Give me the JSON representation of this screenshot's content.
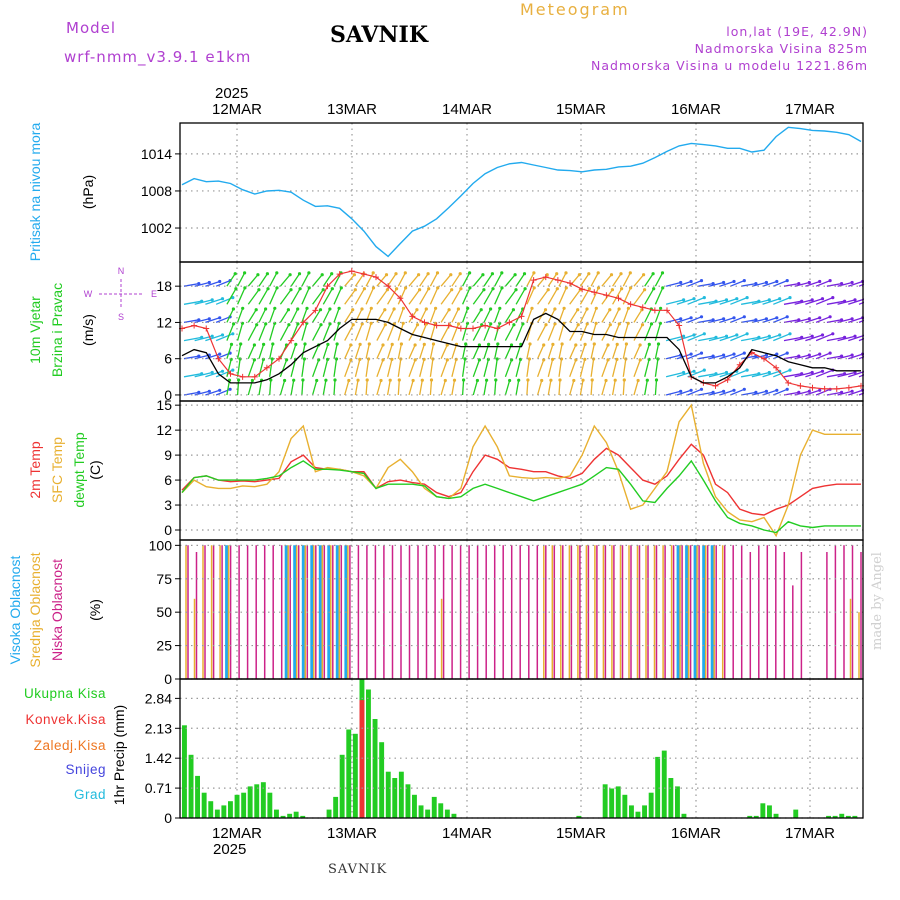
{
  "header": {
    "model_label": "Model",
    "model_name": "wrf-nmm_v3.9.1  e1km",
    "station": "SAVNIK",
    "meteogram": "Meteogram",
    "location": "lon,lat (19E, 42.9N)",
    "elevation": "Nadmorska Visina 825m",
    "model_elevation": "Nadmorska Visina u modelu 1221.86m",
    "footer_station": "SAVNIK",
    "made_by": "made by Angel"
  },
  "chart_data": [
    {
      "type": "line",
      "panel": "pressure",
      "ylabel_lines": [
        "Pritisak na nivou mora",
        "(hPa)"
      ],
      "ylabel_colors": [
        "#22aaee",
        "#000000"
      ],
      "x_year": "2025",
      "x_day_labels": [
        "12MAR",
        "13MAR",
        "14MAR",
        "15MAR",
        "16MAR",
        "17MAR"
      ],
      "yticks": [
        1002,
        1008,
        1014
      ],
      "ylim": [
        996.5,
        1019
      ],
      "color": "#22aaee",
      "series": [
        {
          "values": [
            1009,
            1010,
            1009.5,
            1009.6,
            1009.2,
            1008.2,
            1007.5,
            1008,
            1008.1,
            1007.8,
            1006.5,
            1005.5,
            1005.6,
            1005.2,
            1003.5,
            1001.5,
            999,
            997.4,
            999.5,
            1001.5,
            1002.3,
            1003.5,
            1005.3,
            1007.2,
            1009.2,
            1010.8,
            1011.8,
            1012.4,
            1012.6,
            1012.2,
            1011.8,
            1011.4,
            1011.3,
            1011.1,
            1011.4,
            1011.5,
            1011.9,
            1012,
            1012.5,
            1013.4,
            1014.4,
            1015.3,
            1015.7,
            1015.5,
            1015.3,
            1014.9,
            1014.9,
            1014.3,
            1014.6,
            1016.8,
            1018.3,
            1018.1,
            1017.8,
            1017.7,
            1017.5,
            1017.1,
            1016
          ]
        }
      ]
    },
    {
      "type": "line",
      "panel": "wind",
      "ylabel_lines": [
        "10m Vjetar",
        "Brzina i Pravac",
        "(m/s)"
      ],
      "ylabel_colors": [
        "#22cc22",
        "#22cc22",
        "#000000"
      ],
      "compass_labels": {
        "n": "N",
        "s": "S",
        "w": "W",
        "e": "E"
      },
      "yticks": [
        0,
        6,
        12,
        18
      ],
      "ylim": [
        -1,
        22
      ],
      "series": [
        {
          "name": "mean",
          "color": "#000000",
          "values": [
            6.5,
            7.5,
            7,
            3.5,
            2,
            2,
            2,
            2.5,
            3.5,
            5,
            7,
            8,
            9,
            11,
            12.5,
            12.5,
            12.5,
            12,
            11,
            10,
            9.5,
            9,
            8.5,
            8,
            8,
            8,
            8,
            8,
            8,
            12.5,
            13.5,
            12.5,
            10.5,
            10.5,
            10,
            10,
            9.5,
            9.5,
            9.5,
            9.5,
            9.5,
            7.5,
            3,
            2,
            2,
            3,
            4.5,
            7.5,
            7,
            6.5,
            5.5,
            5,
            4.5,
            4.5,
            4,
            4,
            4
          ]
        },
        {
          "name": "gust",
          "color": "#ee3333",
          "values": [
            11,
            11.5,
            11,
            6,
            3.5,
            3,
            3,
            4.5,
            6,
            9,
            12,
            14,
            18,
            20,
            20.5,
            20,
            19.5,
            18,
            16,
            13,
            12,
            11.5,
            11.5,
            11,
            11,
            11.5,
            11,
            12,
            13,
            19,
            19.5,
            19,
            18.5,
            17.5,
            17,
            16.5,
            16,
            15,
            14.5,
            14,
            14,
            11.5,
            3,
            2,
            1.5,
            2.5,
            5,
            7,
            6,
            4.5,
            2,
            1.5,
            1.2,
            1,
            1,
            1.2,
            1.5
          ]
        }
      ],
      "arrow_palette": [
        "#7722dd",
        "#3355ee",
        "#22bbdd",
        "#22cc22",
        "#e8b030"
      ]
    },
    {
      "type": "line",
      "panel": "temperature",
      "ylabel_lines": [
        "2m Temp",
        "SFC Temp",
        "dewpt Temp",
        "(C)"
      ],
      "ylabel_colors": [
        "#ee3333",
        "#e8b030",
        "#22cc22",
        "#000000"
      ],
      "yticks": [
        0,
        3,
        6,
        9,
        12,
        15
      ],
      "ylim": [
        -1.2,
        15.5
      ],
      "series": [
        {
          "name": "2m Temp",
          "color": "#ee3333",
          "values": [
            4.8,
            6.3,
            6.5,
            6,
            5.8,
            5.9,
            5.8,
            6,
            6.2,
            8.2,
            9,
            7.5,
            7.3,
            7.3,
            7,
            7,
            5,
            5.8,
            6,
            5.7,
            5.5,
            4.5,
            4,
            4.5,
            7,
            9,
            8.5,
            7.5,
            7.3,
            7,
            7,
            6.5,
            6.2,
            6.8,
            8.5,
            9.8,
            9,
            7.5,
            6,
            5.5,
            6.5,
            8.5,
            10.3,
            9,
            5.5,
            4.5,
            2.5,
            2,
            1.8,
            2.5,
            3,
            4,
            5,
            5.3,
            5.5,
            5.5,
            5.5
          ]
        },
        {
          "name": "SFC Temp",
          "color": "#e8b030",
          "values": [
            4.5,
            6,
            5.2,
            5,
            5,
            5.3,
            5.2,
            5.5,
            7,
            11,
            12.5,
            7,
            7.5,
            7.3,
            7,
            6.5,
            5,
            7.5,
            8.5,
            7,
            5,
            4,
            3.8,
            5,
            10,
            12.5,
            10,
            6.5,
            6.3,
            6.2,
            6.3,
            6.2,
            6.5,
            9,
            12.5,
            10.5,
            7,
            2.5,
            3,
            5,
            7,
            13,
            15,
            8,
            4,
            2.2,
            1.2,
            1,
            1.5,
            -0.7,
            3,
            9,
            12,
            11.5,
            11.5,
            11.5,
            11.5
          ]
        },
        {
          "name": "dewpt Temp",
          "color": "#22cc22",
          "values": [
            4.5,
            6.3,
            6.5,
            6,
            6,
            6,
            6,
            6.2,
            6.5,
            7.5,
            8.3,
            7.3,
            7.3,
            7.2,
            7,
            6.8,
            5,
            5.5,
            5.5,
            5.5,
            5.3,
            4,
            3.8,
            4,
            5,
            5.5,
            5,
            4.5,
            4,
            3.5,
            4,
            4.5,
            5,
            5.5,
            6.5,
            7.5,
            7.3,
            5.5,
            3.5,
            3.3,
            5,
            6.5,
            8.3,
            6,
            3.5,
            1.5,
            0.8,
            0.5,
            0,
            -0.3,
            1,
            0.5,
            0.3,
            0.5,
            0.5,
            0.5,
            0.5
          ]
        }
      ]
    },
    {
      "type": "bar",
      "panel": "clouds",
      "ylabel_lines": [
        "Visoka Oblacnost",
        "Srednja Oblacnost",
        "Niska Oblacnost",
        "(%)"
      ],
      "ylabel_colors": [
        "#22aaee",
        "#e8b030",
        "#cc2288",
        "#000000"
      ],
      "yticks": [
        0,
        25,
        50,
        75,
        100
      ],
      "ylim": [
        0,
        104
      ],
      "series": [
        {
          "name": "Visoka Oblacnost",
          "color": "#22aaee",
          "values": [
            0,
            0,
            0,
            0,
            0,
            100,
            0,
            0,
            0,
            0,
            0,
            0,
            100,
            100,
            100,
            100,
            100,
            100,
            100,
            100,
            0,
            0,
            0,
            0,
            0,
            0,
            0,
            0,
            0,
            0,
            0,
            0,
            0,
            0,
            0,
            0,
            0,
            0,
            0,
            0,
            0,
            0,
            0,
            0,
            0,
            0,
            0,
            0,
            0,
            0,
            0,
            0,
            0,
            0,
            0,
            0,
            0,
            0,
            100,
            100,
            100,
            100,
            100,
            0,
            0,
            0,
            0,
            0,
            0,
            0,
            0,
            0,
            0,
            0,
            0,
            0,
            0,
            0,
            0,
            0
          ]
        },
        {
          "name": "Srednja Oblacnost",
          "color": "#e8b030",
          "values": [
            100,
            60,
            100,
            100,
            100,
            100,
            0,
            0,
            0,
            0,
            0,
            0,
            100,
            100,
            100,
            100,
            100,
            100,
            100,
            100,
            0,
            0,
            0,
            0,
            0,
            0,
            0,
            0,
            0,
            0,
            60,
            0,
            0,
            0,
            0,
            0,
            0,
            0,
            0,
            0,
            0,
            0,
            100,
            100,
            100,
            100,
            100,
            100,
            100,
            100,
            100,
            100,
            100,
            100,
            100,
            100,
            100,
            100,
            100,
            100,
            100,
            100,
            100,
            100,
            0,
            0,
            0,
            0,
            0,
            0,
            0,
            0,
            0,
            0,
            0,
            0,
            0,
            0,
            60,
            50
          ]
        },
        {
          "name": "Niska Oblacnost",
          "color": "#cc2288",
          "values": [
            100,
            95,
            100,
            100,
            100,
            100,
            100,
            100,
            100,
            100,
            100,
            100,
            100,
            100,
            100,
            100,
            100,
            100,
            100,
            100,
            100,
            100,
            100,
            100,
            100,
            100,
            100,
            100,
            100,
            100,
            100,
            100,
            100,
            100,
            100,
            100,
            100,
            100,
            100,
            100,
            100,
            100,
            100,
            100,
            100,
            100,
            100,
            100,
            100,
            100,
            100,
            100,
            100,
            100,
            100,
            100,
            100,
            100,
            100,
            100,
            100,
            100,
            100,
            100,
            100,
            100,
            95,
            100,
            100,
            100,
            95,
            70,
            95,
            0,
            0,
            95,
            100,
            100,
            100,
            95
          ]
        }
      ]
    },
    {
      "type": "bar",
      "panel": "precipitation",
      "ylabel_lines": [
        "1hr Precip (mm)"
      ],
      "ylabel_colors": [
        "#000000"
      ],
      "legend": [
        {
          "name": "Ukupna  Kisa",
          "color": "#22cc22"
        },
        {
          "name": "Konvek.Kisa",
          "color": "#ee3333"
        },
        {
          "name": "Zaledj.Kisa",
          "color": "#ee7722"
        },
        {
          "name": "Snijeg",
          "color": "#4444dd"
        },
        {
          "name": "Grad",
          "color": "#22bbdd"
        }
      ],
      "ytick_labels": [
        "0",
        "0.71",
        "1.42",
        "2.13",
        "2.84"
      ],
      "ytick_values": [
        0,
        0.71,
        1.42,
        2.13,
        2.84
      ],
      "ylim": [
        0,
        3.3
      ],
      "series": [
        {
          "name": "Ukupna  Kisa",
          "color": "#22cc22",
          "values": [
            2.2,
            1.5,
            1.0,
            0.6,
            0.4,
            0.2,
            0.3,
            0.4,
            0.55,
            0.6,
            0.75,
            0.8,
            0.85,
            0.6,
            0.2,
            0.05,
            0.1,
            0.15,
            0.05,
            0,
            0,
            0,
            0.2,
            0.5,
            1.5,
            2.1,
            2.0,
            3.3,
            3.05,
            2.35,
            1.8,
            1.1,
            0.95,
            1.1,
            0.8,
            0.55,
            0.3,
            0.2,
            0.5,
            0.35,
            0.2,
            0.1,
            0,
            0,
            0,
            0,
            0,
            0,
            0,
            0,
            0,
            0,
            0,
            0,
            0,
            0,
            0,
            0,
            0,
            0,
            0.05,
            0,
            0,
            0,
            0.8,
            0.7,
            0.75,
            0.55,
            0.3,
            0.15,
            0.3,
            0.6,
            1.45,
            1.6,
            0.95,
            0.75,
            0.1,
            0,
            0,
            0,
            0,
            0,
            0,
            0,
            0,
            0,
            0.05,
            0.05,
            0.35,
            0.3,
            0.1,
            0,
            0,
            0.2,
            0,
            0,
            0,
            0,
            0.05,
            0.05,
            0.1,
            0.05,
            0.05
          ]
        },
        {
          "name": "Konvek.Kisa",
          "color": "#ee3333",
          "values": [
            0,
            0,
            0,
            0,
            0,
            0,
            0,
            0,
            0,
            0,
            0,
            0,
            0,
            0,
            0,
            0,
            0,
            0,
            0,
            0,
            0,
            0,
            0,
            0,
            0,
            0,
            0,
            2.8,
            0,
            0,
            0,
            0,
            0,
            0,
            0,
            0,
            0,
            0,
            0,
            0,
            0,
            0,
            0,
            0,
            0,
            0,
            0,
            0,
            0,
            0,
            0,
            0,
            0,
            0,
            0,
            0,
            0,
            0,
            0,
            0,
            0,
            0,
            0,
            0,
            0,
            0,
            0,
            0,
            0,
            0,
            0,
            0,
            0,
            0,
            0,
            0,
            0,
            0,
            0,
            0,
            0,
            0,
            0,
            0,
            0,
            0,
            0,
            0,
            0,
            0,
            0,
            0,
            0,
            0,
            0,
            0,
            0,
            0,
            0,
            0,
            0,
            0,
            0
          ]
        }
      ]
    }
  ]
}
